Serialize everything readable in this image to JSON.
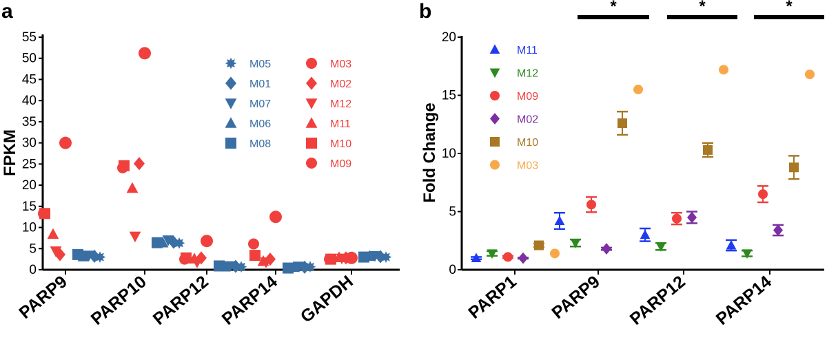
{
  "chart_data": [
    {
      "panel": "a",
      "type": "scatter",
      "ylabel": "FPKM",
      "ylim": [
        0,
        55
      ],
      "yticks": [
        0,
        5,
        10,
        15,
        20,
        25,
        30,
        35,
        40,
        45,
        50,
        55
      ],
      "categories": [
        "PARP9",
        "PARP10",
        "PARP12",
        "PARP14",
        "GAPDH"
      ],
      "colors": {
        "blue": "#3a6fa4",
        "red": "#f0403d"
      },
      "series": [
        {
          "name": "M05",
          "color": "#3a6fa4",
          "marker": "star-icon",
          "values": [
            3.0,
            6.3,
            0.7,
            0.7,
            3.0
          ]
        },
        {
          "name": "M01",
          "color": "#3a6fa4",
          "marker": "diamond-icon",
          "values": [
            3.2,
            6.5,
            0.8,
            0.6,
            3.1
          ]
        },
        {
          "name": "M07",
          "color": "#3a6fa4",
          "marker": "triangle-down-icon",
          "values": [
            3.4,
            7.0,
            0.9,
            0.8,
            3.3
          ]
        },
        {
          "name": "M06",
          "color": "#3a6fa4",
          "marker": "triangle-up-icon",
          "values": [
            3.1,
            6.4,
            0.7,
            0.6,
            3.2
          ]
        },
        {
          "name": "M08",
          "color": "#3a6fa4",
          "marker": "square-icon",
          "values": [
            3.6,
            6.4,
            0.9,
            0.4,
            3.0
          ]
        },
        {
          "name": "M03",
          "color": "#f0403d",
          "marker": "circle-icon",
          "values": [
            30.0,
            51.2,
            6.8,
            12.5,
            2.8
          ]
        },
        {
          "name": "M02",
          "color": "#f0403d",
          "marker": "diamond-icon",
          "values": [
            3.6,
            25.1,
            2.8,
            2.5,
            2.8
          ]
        },
        {
          "name": "M12",
          "color": "#f0403d",
          "marker": "triangle-down-icon",
          "values": [
            4.4,
            7.9,
            1.8,
            1.8,
            2.7
          ]
        },
        {
          "name": "M11",
          "color": "#f0403d",
          "marker": "triangle-up-icon",
          "values": [
            8.4,
            19.3,
            2.6,
            2.0,
            2.9
          ]
        },
        {
          "name": "M10",
          "color": "#f0403d",
          "marker": "square-icon",
          "values": [
            13.3,
            24.6,
            2.8,
            3.4,
            2.5
          ]
        },
        {
          "name": "M09",
          "color": "#f0403d",
          "marker": "circle-icon",
          "values": [
            13.3,
            24.1,
            2.5,
            6.1,
            2.5
          ]
        }
      ]
    },
    {
      "panel": "b",
      "type": "scatter",
      "ylabel": "Fold Change",
      "ylim": [
        0,
        20
      ],
      "yticks": [
        0,
        5,
        10,
        15,
        20
      ],
      "categories": [
        "PARP1",
        "PARP9",
        "PARP12",
        "PARP14"
      ],
      "significance": [
        "*",
        "*",
        "*"
      ],
      "series": [
        {
          "name": "M11",
          "color": "#1f3bf2",
          "marker": "triangle-up-icon",
          "values": [
            1.0,
            4.2,
            3.0,
            2.1
          ],
          "errors": [
            0.1,
            0.7,
            0.55,
            0.45
          ]
        },
        {
          "name": "M12",
          "color": "#2e8a1e",
          "marker": "triangle-down-icon",
          "values": [
            1.4,
            2.3,
            2.0,
            1.4
          ],
          "errors": [
            0.2,
            0.3,
            0.3,
            0.25
          ]
        },
        {
          "name": "M09",
          "color": "#f0403d",
          "marker": "circle-icon",
          "values": [
            1.1,
            5.6,
            4.4,
            6.5
          ],
          "errors": [
            0.1,
            0.65,
            0.5,
            0.7
          ]
        },
        {
          "name": "M02",
          "color": "#7b2fa0",
          "marker": "diamond-icon",
          "values": [
            1.0,
            1.8,
            4.5,
            3.4
          ],
          "errors": [
            0.05,
            0.1,
            0.5,
            0.45
          ]
        },
        {
          "name": "M10",
          "color": "#a87825",
          "marker": "square-icon",
          "values": [
            2.1,
            12.6,
            10.3,
            8.8
          ],
          "errors": [
            0.15,
            1.0,
            0.6,
            1.0
          ]
        },
        {
          "name": "M03",
          "color": "#f7a94a",
          "marker": "circle-icon",
          "values": [
            1.4,
            15.5,
            17.2,
            16.8
          ],
          "errors": [
            0,
            0,
            0,
            0
          ]
        }
      ]
    }
  ]
}
